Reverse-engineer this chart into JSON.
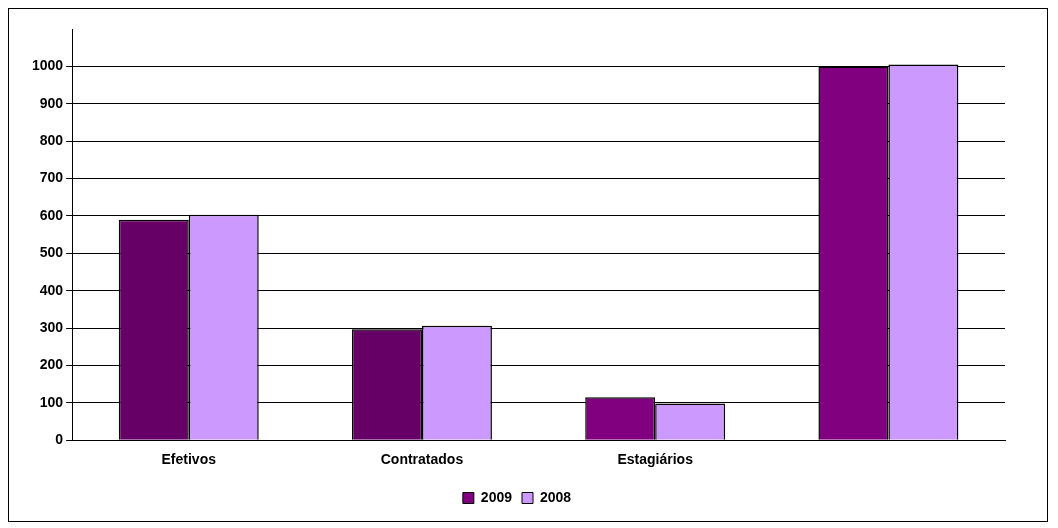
{
  "chart_data": {
    "type": "bar",
    "categories": [
      "Efetivos",
      "Contratados",
      "Estagiários",
      null
    ],
    "series": [
      {
        "name": "2009",
        "color": "#800080",
        "colors": [
          "#660066",
          "#660066",
          "#800080",
          "#800080"
        ],
        "values": [
          590,
          297,
          115,
          1000
        ]
      },
      {
        "name": "2008",
        "color": "#cc99ff",
        "values": [
          603,
          306,
          98,
          1005
        ]
      }
    ],
    "ylim": [
      0,
      1100
    ],
    "yticks": [
      0,
      100,
      200,
      300,
      400,
      500,
      600,
      700,
      800,
      900,
      1000
    ],
    "grid": "y",
    "legend": "bottom"
  }
}
